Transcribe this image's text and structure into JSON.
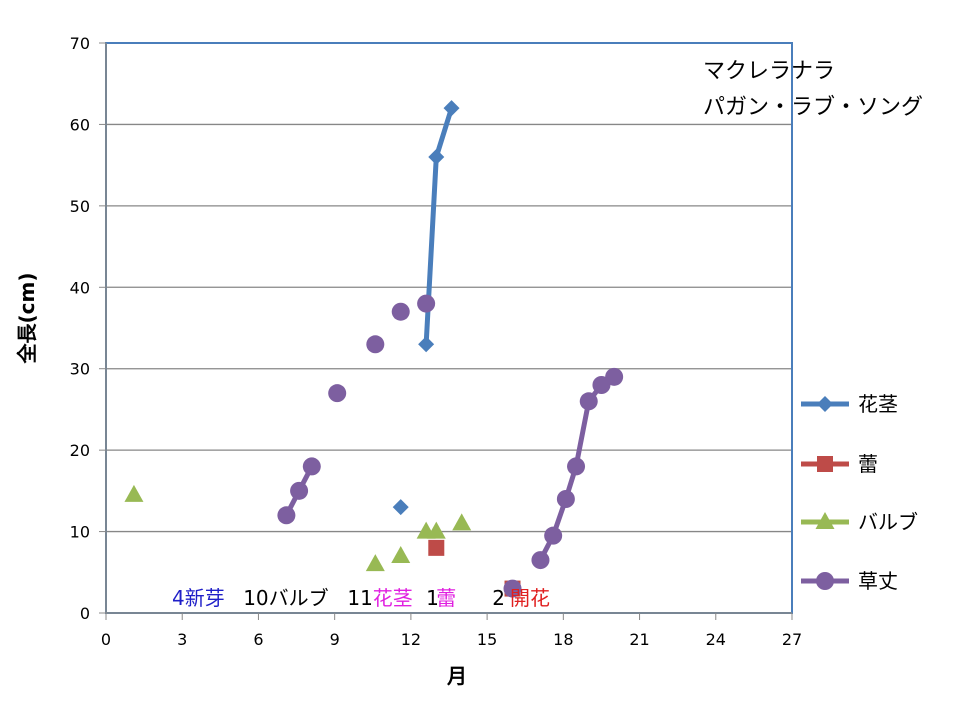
{
  "chart_data": {
    "type": "scatter",
    "title_lines": [
      "マクレラナラ",
      "パガン・ラブ・ソング"
    ],
    "xlabel": "月",
    "ylabel": "全長(cm)",
    "xlim": [
      0,
      27
    ],
    "ylim": [
      0,
      70
    ],
    "xticks": [
      0,
      3,
      6,
      9,
      12,
      15,
      18,
      21,
      24,
      27
    ],
    "yticks": [
      0,
      10,
      20,
      30,
      40,
      50,
      60,
      70
    ],
    "grid": "horizontal",
    "legend_position": "right",
    "series": [
      {
        "name": "花茎",
        "color": "#4a7ebb",
        "marker": "diamond",
        "points": [
          [
            11.6,
            13
          ]
        ],
        "lines": [
          [
            [
              12.6,
              33
            ],
            [
              13.0,
              56
            ],
            [
              13.6,
              62
            ]
          ]
        ]
      },
      {
        "name": "蕾",
        "color": "#be4b48",
        "marker": "square",
        "points": [
          [
            13.0,
            8
          ],
          [
            16.0,
            3
          ]
        ],
        "lines": []
      },
      {
        "name": "バルブ",
        "color": "#98b954",
        "marker": "triangle",
        "points": [
          [
            1.1,
            14.5
          ],
          [
            10.6,
            6
          ],
          [
            11.6,
            7
          ],
          [
            12.6,
            10
          ],
          [
            13.0,
            10
          ],
          [
            14.0,
            11
          ]
        ],
        "lines": []
      },
      {
        "name": "草丈",
        "color": "#7d5fa0",
        "marker": "circle",
        "points": [
          [
            9.1,
            27
          ],
          [
            10.6,
            33
          ],
          [
            11.6,
            37
          ],
          [
            12.6,
            38
          ],
          [
            16.0,
            3
          ]
        ],
        "lines": [
          [
            [
              7.1,
              12
            ],
            [
              7.6,
              15
            ],
            [
              8.1,
              18
            ]
          ],
          [
            [
              17.1,
              6.5
            ],
            [
              17.6,
              9.5
            ],
            [
              18.1,
              14
            ],
            [
              18.5,
              18
            ],
            [
              19.0,
              26
            ],
            [
              19.5,
              28
            ],
            [
              20.0,
              29
            ]
          ]
        ]
      }
    ],
    "annotations": [
      {
        "text": "4新芽",
        "x": 2.6,
        "y": 1.5,
        "color": "#1f1fc8"
      },
      {
        "text": "10バルブ",
        "x": 5.4,
        "y": 1.5,
        "color": "#000000"
      },
      {
        "text": "11",
        "x": 9.5,
        "y": 1.5,
        "color": "#000000"
      },
      {
        "text": "花茎",
        "x": 10.5,
        "y": 1.5,
        "color": "#e020e0"
      },
      {
        "text": "1",
        "x": 12.6,
        "y": 1.5,
        "color": "#000000"
      },
      {
        "text": "蕾",
        "x": 13.0,
        "y": 1.5,
        "color": "#e020e0"
      },
      {
        "text": "2",
        "x": 15.2,
        "y": 1.5,
        "color": "#000000"
      },
      {
        "text": "開花",
        "x": 15.9,
        "y": 1.5,
        "color": "#e02020"
      }
    ]
  }
}
